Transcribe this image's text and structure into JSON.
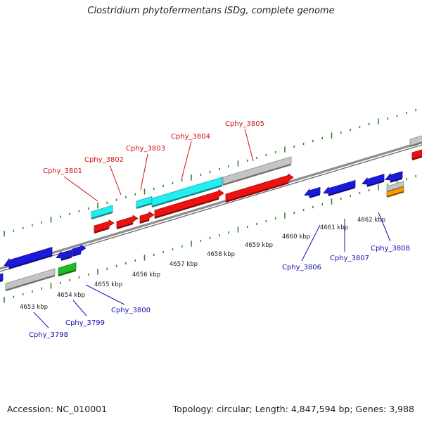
{
  "title": "Clostridium phytofermentans ISDg, complete genome",
  "footer": {
    "accession": "Accession: NC_010001",
    "topology": "Topology: circular; Length: 4,847,594 bp; Genes: 3,988"
  },
  "colors": {
    "forward_tick": "#2a8a2a",
    "reverse_tick": "#2a8a2a",
    "backbone": "#8c8c8c",
    "gene_red": "#ee1111",
    "gene_cyan": "#22eeee",
    "gene_blue": "#1a1add",
    "gene_gray": "#c4c4c4",
    "gene_green": "#22bb22",
    "gene_orange": "#ff9900",
    "label_top": "#d01010",
    "label_bottom": "#1010b0"
  },
  "scale_labels": [
    "4653 kbp",
    "4654 kbp",
    "4655 kbp",
    "4656 kbp",
    "4657 kbp",
    "4658 kbp",
    "4659 kbp",
    "4660 kbp",
    "4661 kbp",
    "4662 kbp"
  ],
  "labels_top": [
    "Cphy_3801",
    "Cphy_3802",
    "Cphy_3803",
    "Cphy_3804",
    "Cphy_3805"
  ],
  "labels_bottom": [
    "Cphy_3798",
    "Cphy_3799",
    "Cphy_3800",
    "Cphy_3806",
    "Cphy_3807",
    "Cphy_3808"
  ],
  "genes": [
    {
      "name": "unlabeled-blue-1",
      "color": "gene_blue"
    },
    {
      "name": "unlabeled-blue-2",
      "color": "gene_blue"
    },
    {
      "name": "unlabeled-gray-1",
      "color": "gene_gray"
    },
    {
      "name": "unlabeled-blue-3",
      "color": "gene_blue"
    },
    {
      "name": "unlabeled-blue-4",
      "color": "gene_blue"
    },
    {
      "name": "unlabeled-green-1",
      "color": "gene_green"
    },
    {
      "name": "unlabeled-cyan-1",
      "color": "gene_cyan"
    },
    {
      "name": "unlabeled-red-1",
      "color": "gene_red"
    },
    {
      "name": "unlabeled-red-2",
      "color": "gene_red"
    },
    {
      "name": "unlabeled-cyan-2",
      "color": "gene_cyan"
    },
    {
      "name": "unlabeled-red-3",
      "color": "gene_red"
    },
    {
      "name": "unlabeled-cyan-3",
      "color": "gene_cyan"
    },
    {
      "name": "unlabeled-red-4",
      "color": "gene_red"
    },
    {
      "name": "unlabeled-gray-2",
      "color": "gene_gray"
    },
    {
      "name": "unlabeled-red-5",
      "color": "gene_red"
    },
    {
      "name": "unlabeled-blue-5",
      "color": "gene_blue"
    },
    {
      "name": "unlabeled-blue-6",
      "color": "gene_blue"
    },
    {
      "name": "unlabeled-blue-7",
      "color": "gene_blue"
    },
    {
      "name": "unlabeled-blue-8",
      "color": "gene_blue"
    },
    {
      "name": "unlabeled-gray-3",
      "color": "gene_gray"
    },
    {
      "name": "unlabeled-orange-1",
      "color": "gene_orange"
    },
    {
      "name": "unlabeled-gray-4",
      "color": "gene_gray"
    },
    {
      "name": "unlabeled-red-6",
      "color": "gene_red"
    }
  ]
}
